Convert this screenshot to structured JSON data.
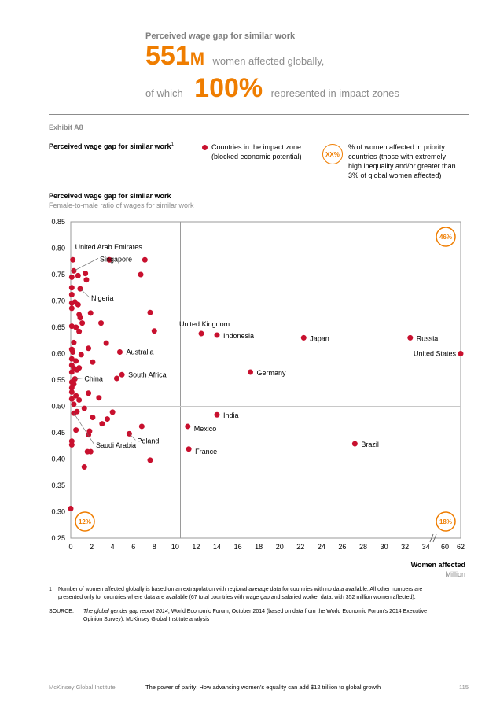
{
  "header": {
    "title": "Perceived wage gap for similar work",
    "big1_number": "551",
    "big1_unit": "M",
    "big1_text": "women affected globally,",
    "line2_prefix": "of which",
    "big2_number": "100%",
    "line2_text": "represented in impact zones"
  },
  "exhibit": {
    "label": "Exhibit A8",
    "subtitle": "Perceived wage gap for similar work",
    "subtitle_sup": "1",
    "legend_dot_text_1": "Countries in the impact zone",
    "legend_dot_text_2": "(blocked economic potential)",
    "legend_circle_label": "XX%",
    "legend_circle_text_1": "% of women affected in priority",
    "legend_circle_text_2": "countries (those with extremely",
    "legend_circle_text_3": "high inequality and/or greater than",
    "legend_circle_text_4": "3% of global women affected)"
  },
  "chart_data": {
    "type": "scatter",
    "title": "Perceived wage gap for similar work",
    "subtitle": "Female-to-male ratio of wages for similar work",
    "xlabel": "Women affected",
    "xlabel_unit": "Million",
    "ylim": [
      0.25,
      0.85
    ],
    "yticks": [
      "0.85",
      "0.80",
      "0.75",
      "0.70",
      "0.65",
      "0.60",
      "0.55",
      "0.50",
      "0.45",
      "0.40",
      "0.35",
      "0.30",
      "0.25"
    ],
    "xticks": [
      "0",
      "2",
      "4",
      "6",
      "8",
      "10",
      "12",
      "14",
      "16",
      "18",
      "20",
      "22",
      "24",
      "26",
      "28",
      "30",
      "32",
      "34",
      "60",
      "62"
    ],
    "x_axis_break": "34-60",
    "dividers": {
      "x": 10.5,
      "y": 0.5
    },
    "quadrant_labels": {
      "top_right": "46%",
      "bottom_left": "12%",
      "bottom_right": "18%"
    },
    "points_labeled": [
      {
        "label": "United States",
        "x": 62.0,
        "y": 0.6
      },
      {
        "label": "Russia",
        "x": 32.5,
        "y": 0.63
      },
      {
        "label": "Japan",
        "x": 22.3,
        "y": 0.63
      },
      {
        "label": "Indonesia",
        "x": 14.0,
        "y": 0.635
      },
      {
        "label": "United Kingdom",
        "x": 12.5,
        "y": 0.638
      },
      {
        "label": "Germany",
        "x": 17.2,
        "y": 0.565
      },
      {
        "label": "India",
        "x": 14.0,
        "y": 0.484
      },
      {
        "label": "Mexico",
        "x": 11.2,
        "y": 0.462
      },
      {
        "label": "France",
        "x": 11.3,
        "y": 0.419
      },
      {
        "label": "Brazil",
        "x": 27.2,
        "y": 0.429
      },
      {
        "label": "Australia",
        "x": 4.7,
        "y": 0.603
      },
      {
        "label": "South Africa",
        "x": 4.9,
        "y": 0.56
      },
      {
        "label": "China",
        "x": 0.4,
        "y": 0.552
      },
      {
        "label": "Poland",
        "x": 5.6,
        "y": 0.448
      },
      {
        "label": "Saudi Arabia",
        "x": 0.3,
        "y": 0.487
      },
      {
        "label": "United Arab Emirates",
        "x": 0.2,
        "y": 0.778
      },
      {
        "label": "Singapore",
        "x": 0.3,
        "y": 0.757
      },
      {
        "label": "Nigeria",
        "x": 0.9,
        "y": 0.723
      }
    ],
    "points_unlabeled": [
      {
        "x": 3.7,
        "y": 0.778
      },
      {
        "x": 7.1,
        "y": 0.778
      },
      {
        "x": 6.7,
        "y": 0.75
      },
      {
        "x": 0.1,
        "y": 0.745
      },
      {
        "x": 0.7,
        "y": 0.748
      },
      {
        "x": 1.4,
        "y": 0.752
      },
      {
        "x": 1.5,
        "y": 0.74
      },
      {
        "x": 0.1,
        "y": 0.725
      },
      {
        "x": 0.1,
        "y": 0.712
      },
      {
        "x": 0.1,
        "y": 0.696
      },
      {
        "x": 0.4,
        "y": 0.698
      },
      {
        "x": 0.7,
        "y": 0.693
      },
      {
        "x": 1.9,
        "y": 0.677
      },
      {
        "x": 0.8,
        "y": 0.674
      },
      {
        "x": 0.9,
        "y": 0.668
      },
      {
        "x": 0.1,
        "y": 0.686
      },
      {
        "x": 7.6,
        "y": 0.678
      },
      {
        "x": 2.9,
        "y": 0.658
      },
      {
        "x": 1.1,
        "y": 0.658
      },
      {
        "x": 0.1,
        "y": 0.652
      },
      {
        "x": 0.5,
        "y": 0.65
      },
      {
        "x": 0.8,
        "y": 0.642
      },
      {
        "x": 8.0,
        "y": 0.643
      },
      {
        "x": 0.3,
        "y": 0.621
      },
      {
        "x": 3.4,
        "y": 0.62
      },
      {
        "x": 1.7,
        "y": 0.61
      },
      {
        "x": 0.1,
        "y": 0.608
      },
      {
        "x": 0.2,
        "y": 0.603
      },
      {
        "x": 1.0,
        "y": 0.598
      },
      {
        "x": 0.1,
        "y": 0.59
      },
      {
        "x": 0.5,
        "y": 0.586
      },
      {
        "x": 2.1,
        "y": 0.584
      },
      {
        "x": 0.1,
        "y": 0.578
      },
      {
        "x": 0.3,
        "y": 0.572
      },
      {
        "x": 0.8,
        "y": 0.573
      },
      {
        "x": 0.6,
        "y": 0.569
      },
      {
        "x": 0.1,
        "y": 0.565
      },
      {
        "x": 4.4,
        "y": 0.553
      },
      {
        "x": 0.1,
        "y": 0.546
      },
      {
        "x": 0.3,
        "y": 0.542
      },
      {
        "x": 0.1,
        "y": 0.535
      },
      {
        "x": 0.1,
        "y": 0.527
      },
      {
        "x": 1.7,
        "y": 0.525
      },
      {
        "x": 0.5,
        "y": 0.52
      },
      {
        "x": 2.7,
        "y": 0.516
      },
      {
        "x": 0.1,
        "y": 0.514
      },
      {
        "x": 0.8,
        "y": 0.512
      },
      {
        "x": 0.3,
        "y": 0.504
      },
      {
        "x": 1.3,
        "y": 0.496
      },
      {
        "x": 4.0,
        "y": 0.489
      },
      {
        "x": 0.6,
        "y": 0.49
      },
      {
        "x": 2.1,
        "y": 0.479
      },
      {
        "x": 3.5,
        "y": 0.476
      },
      {
        "x": 3.0,
        "y": 0.467
      },
      {
        "x": 6.8,
        "y": 0.462
      },
      {
        "x": 0.5,
        "y": 0.455
      },
      {
        "x": 1.8,
        "y": 0.453
      },
      {
        "x": 1.7,
        "y": 0.446
      },
      {
        "x": 0.1,
        "y": 0.434
      },
      {
        "x": 0.1,
        "y": 0.427
      },
      {
        "x": 1.6,
        "y": 0.414
      },
      {
        "x": 1.9,
        "y": 0.414
      },
      {
        "x": 7.6,
        "y": 0.398
      },
      {
        "x": 1.3,
        "y": 0.385
      },
      {
        "x": 0.0,
        "y": 0.306
      }
    ]
  },
  "footnote": {
    "number": "1",
    "text_1": "Number of women affected globally is based on an extrapolation with regional average data for countries with no data available. All other numbers are",
    "text_2": "presented only for countries where data are available (67 total countries with wage gap and salaried worker data, with 352 million women affected).",
    "source_label": "SOURCE:",
    "source_italic": "The global gender gap report 2014",
    "source_text_1": ", World Economic Forum, October 2014 (based on data from the World Economic Forum’s 2014 Executive",
    "source_text_2": "Opinion Survey); McKinsey Global Institute analysis"
  },
  "footer": {
    "publisher": "McKinsey Global Institute",
    "report_title": "The power of parity: How advancing women’s equality can add $12 trillion to global growth",
    "page": "115"
  },
  "colors": {
    "accent": "#ef7d00",
    "point": "#c8102e",
    "gray": "#8c8c8c"
  }
}
